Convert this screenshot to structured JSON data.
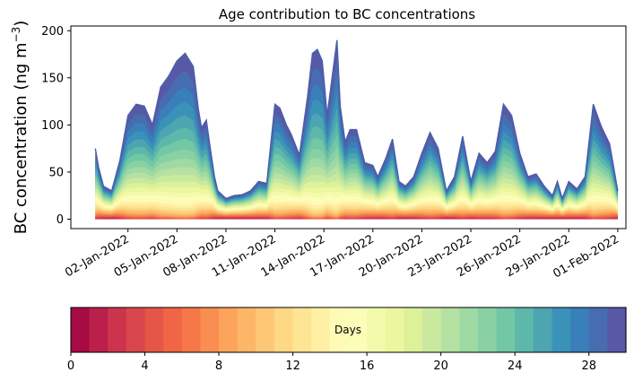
{
  "chart_data": {
    "type": "area",
    "stacked": true,
    "title": "Age contribution to BC concentrations",
    "xlabel": "",
    "ylabel_main": "BC concentration (ng m",
    "ylabel_sup": "−3",
    "ylabel_tail": ")",
    "ylim": [
      -10,
      205
    ],
    "yticks": [
      "0",
      "50",
      "100",
      "150",
      "200"
    ],
    "ytick_values": [
      0,
      50,
      100,
      150,
      200
    ],
    "x_start": "31-Dec-2021",
    "x_end": "31-Jan-2022",
    "xlim_days": [
      -1.5,
      32.5
    ],
    "xticks": [
      "02-Jan-2022",
      "05-Jan-2022",
      "08-Jan-2022",
      "11-Jan-2022",
      "14-Jan-2022",
      "17-Jan-2022",
      "20-Jan-2022",
      "23-Jan-2022",
      "26-Jan-2022",
      "29-Jan-2022",
      "01-Feb-2022"
    ],
    "xtick_days": [
      2,
      5,
      8,
      11,
      14,
      17,
      20,
      23,
      26,
      29,
      32
    ],
    "series_description": "Stacked contributions by air-mass age (days 0–30); total concentration envelope listed below",
    "total": {
      "day": [
        0.0,
        0.2,
        0.5,
        1.0,
        1.5,
        2.0,
        2.5,
        3.0,
        3.5,
        4.0,
        4.5,
        5.0,
        5.5,
        6.0,
        6.3,
        6.5,
        6.8,
        7.0,
        7.3,
        7.5,
        8.0,
        8.5,
        9.0,
        9.5,
        10.0,
        10.5,
        11.0,
        11.3,
        11.7,
        12.0,
        12.5,
        13.0,
        13.3,
        13.6,
        13.9,
        14.2,
        14.5,
        14.8,
        15.0,
        15.3,
        15.6,
        16.0,
        16.5,
        17.0,
        17.3,
        17.8,
        18.2,
        18.6,
        19.0,
        19.5,
        20.0,
        20.5,
        21.0,
        21.5,
        22.0,
        22.5,
        23.0,
        23.5,
        24.0,
        24.5,
        25.0,
        25.5,
        26.0,
        26.5,
        27.0,
        27.5,
        28.0,
        28.3,
        28.6,
        29.0,
        29.5,
        30.0,
        30.5,
        31.0,
        31.5,
        32.0
      ],
      "value": [
        75,
        55,
        35,
        30,
        62,
        110,
        122,
        120,
        100,
        140,
        152,
        168,
        176,
        162,
        118,
        97,
        105,
        80,
        45,
        30,
        22,
        25,
        26,
        30,
        40,
        38,
        122,
        118,
        100,
        90,
        68,
        130,
        176,
        180,
        168,
        110,
        150,
        190,
        120,
        82,
        95,
        95,
        60,
        57,
        45,
        65,
        85,
        40,
        35,
        45,
        70,
        92,
        75,
        30,
        45,
        88,
        40,
        70,
        60,
        72,
        122,
        110,
        70,
        45,
        48,
        35,
        25,
        40,
        22,
        40,
        32,
        45,
        122,
        98,
        80,
        30
      ]
    },
    "age_days": [
      0,
      30
    ],
    "colorbar": {
      "label": "Days",
      "ticks": [
        "0",
        "4",
        "8",
        "12",
        "16",
        "20",
        "24",
        "28"
      ],
      "tick_values": [
        0,
        4,
        8,
        12,
        16,
        20,
        24,
        28
      ],
      "vmin": 0,
      "vmax": 30,
      "colormap": "Spectral",
      "colors": [
        "#9e0142",
        "#d53e4f",
        "#f46d43",
        "#fdae61",
        "#fee08b",
        "#ffffbf",
        "#e6f598",
        "#abdda4",
        "#66c2a5",
        "#3288bd",
        "#5e4fa2"
      ]
    }
  }
}
